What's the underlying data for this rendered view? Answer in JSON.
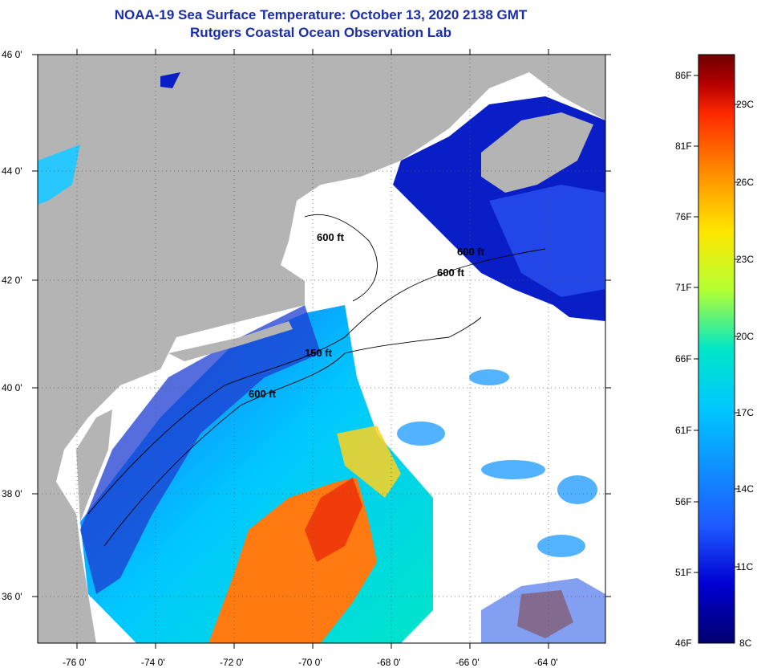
{
  "title": "NOAA-19 Sea Surface Temperature:  October 13, 2020 2138 GMT",
  "subtitle": "Rutgers Coastal Ocean Observation Lab",
  "map": {
    "lon_range": [
      -77,
      -62.5
    ],
    "lat_range": [
      35,
      46
    ],
    "lon_ticks": [
      "-76 0'",
      "-74 0'",
      "-72 0'",
      "-70 0'",
      "-68 0'",
      "-66 0'",
      "-64 0'"
    ],
    "lat_ticks": [
      "46 0'",
      "44 0'",
      "42 0'",
      "40 0'",
      "38 0'",
      "36 0'"
    ],
    "land_color": "#b4b4b4",
    "cloud_color": "#ffffff"
  },
  "isobath_labels": [
    "600 ft",
    "600 ft",
    "600 ft",
    "150 ft",
    "600 ft"
  ],
  "colorbar": {
    "fahrenheit_labels": [
      "86F",
      "81F",
      "76F",
      "71F",
      "66F",
      "61F",
      "56F",
      "51F",
      "46F"
    ],
    "celsius_labels": [
      "29C",
      "26C",
      "23C",
      "20C",
      "17C",
      "14C",
      "11C",
      "8C"
    ],
    "range_f": [
      46,
      88
    ],
    "colors": [
      "#00006e",
      "#0000d2",
      "#1e5aff",
      "#00c8ff",
      "#00e6c8",
      "#b4ff32",
      "#ffe600",
      "#ff8c00",
      "#ff2800",
      "#b40000",
      "#6e0000"
    ]
  }
}
